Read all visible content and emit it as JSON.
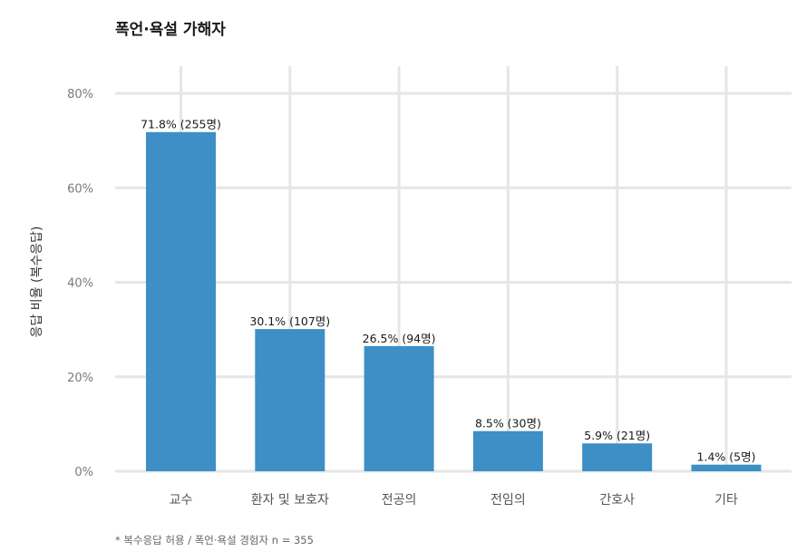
{
  "chart_data": {
    "type": "bar",
    "title": "폭언·욕설 가해자",
    "ylabel": "응답 비율 (복수응답)",
    "xlabel": "",
    "caption": "* 복수응답 허용 / 폭언·욕설 경험자 n = 355",
    "categories": [
      "교수",
      "환자 및 보호자",
      "전공의",
      "전임의",
      "간호사",
      "기타"
    ],
    "values": [
      71.8,
      30.1,
      26.5,
      8.5,
      5.9,
      1.4
    ],
    "data_labels": [
      "71.8% (255명)",
      "30.1% (107명)",
      "26.5% (94명)",
      "8.5% (30명)",
      "5.9% (21명)",
      "1.4% (5명)"
    ],
    "yticks": [
      0,
      20,
      40,
      60,
      80
    ],
    "ytick_labels": [
      "0%",
      "20%",
      "40%",
      "60%",
      "80%"
    ],
    "ylim": [
      0,
      80
    ],
    "bar_color": "#3d8fc6",
    "grid": true,
    "legend": "none"
  }
}
